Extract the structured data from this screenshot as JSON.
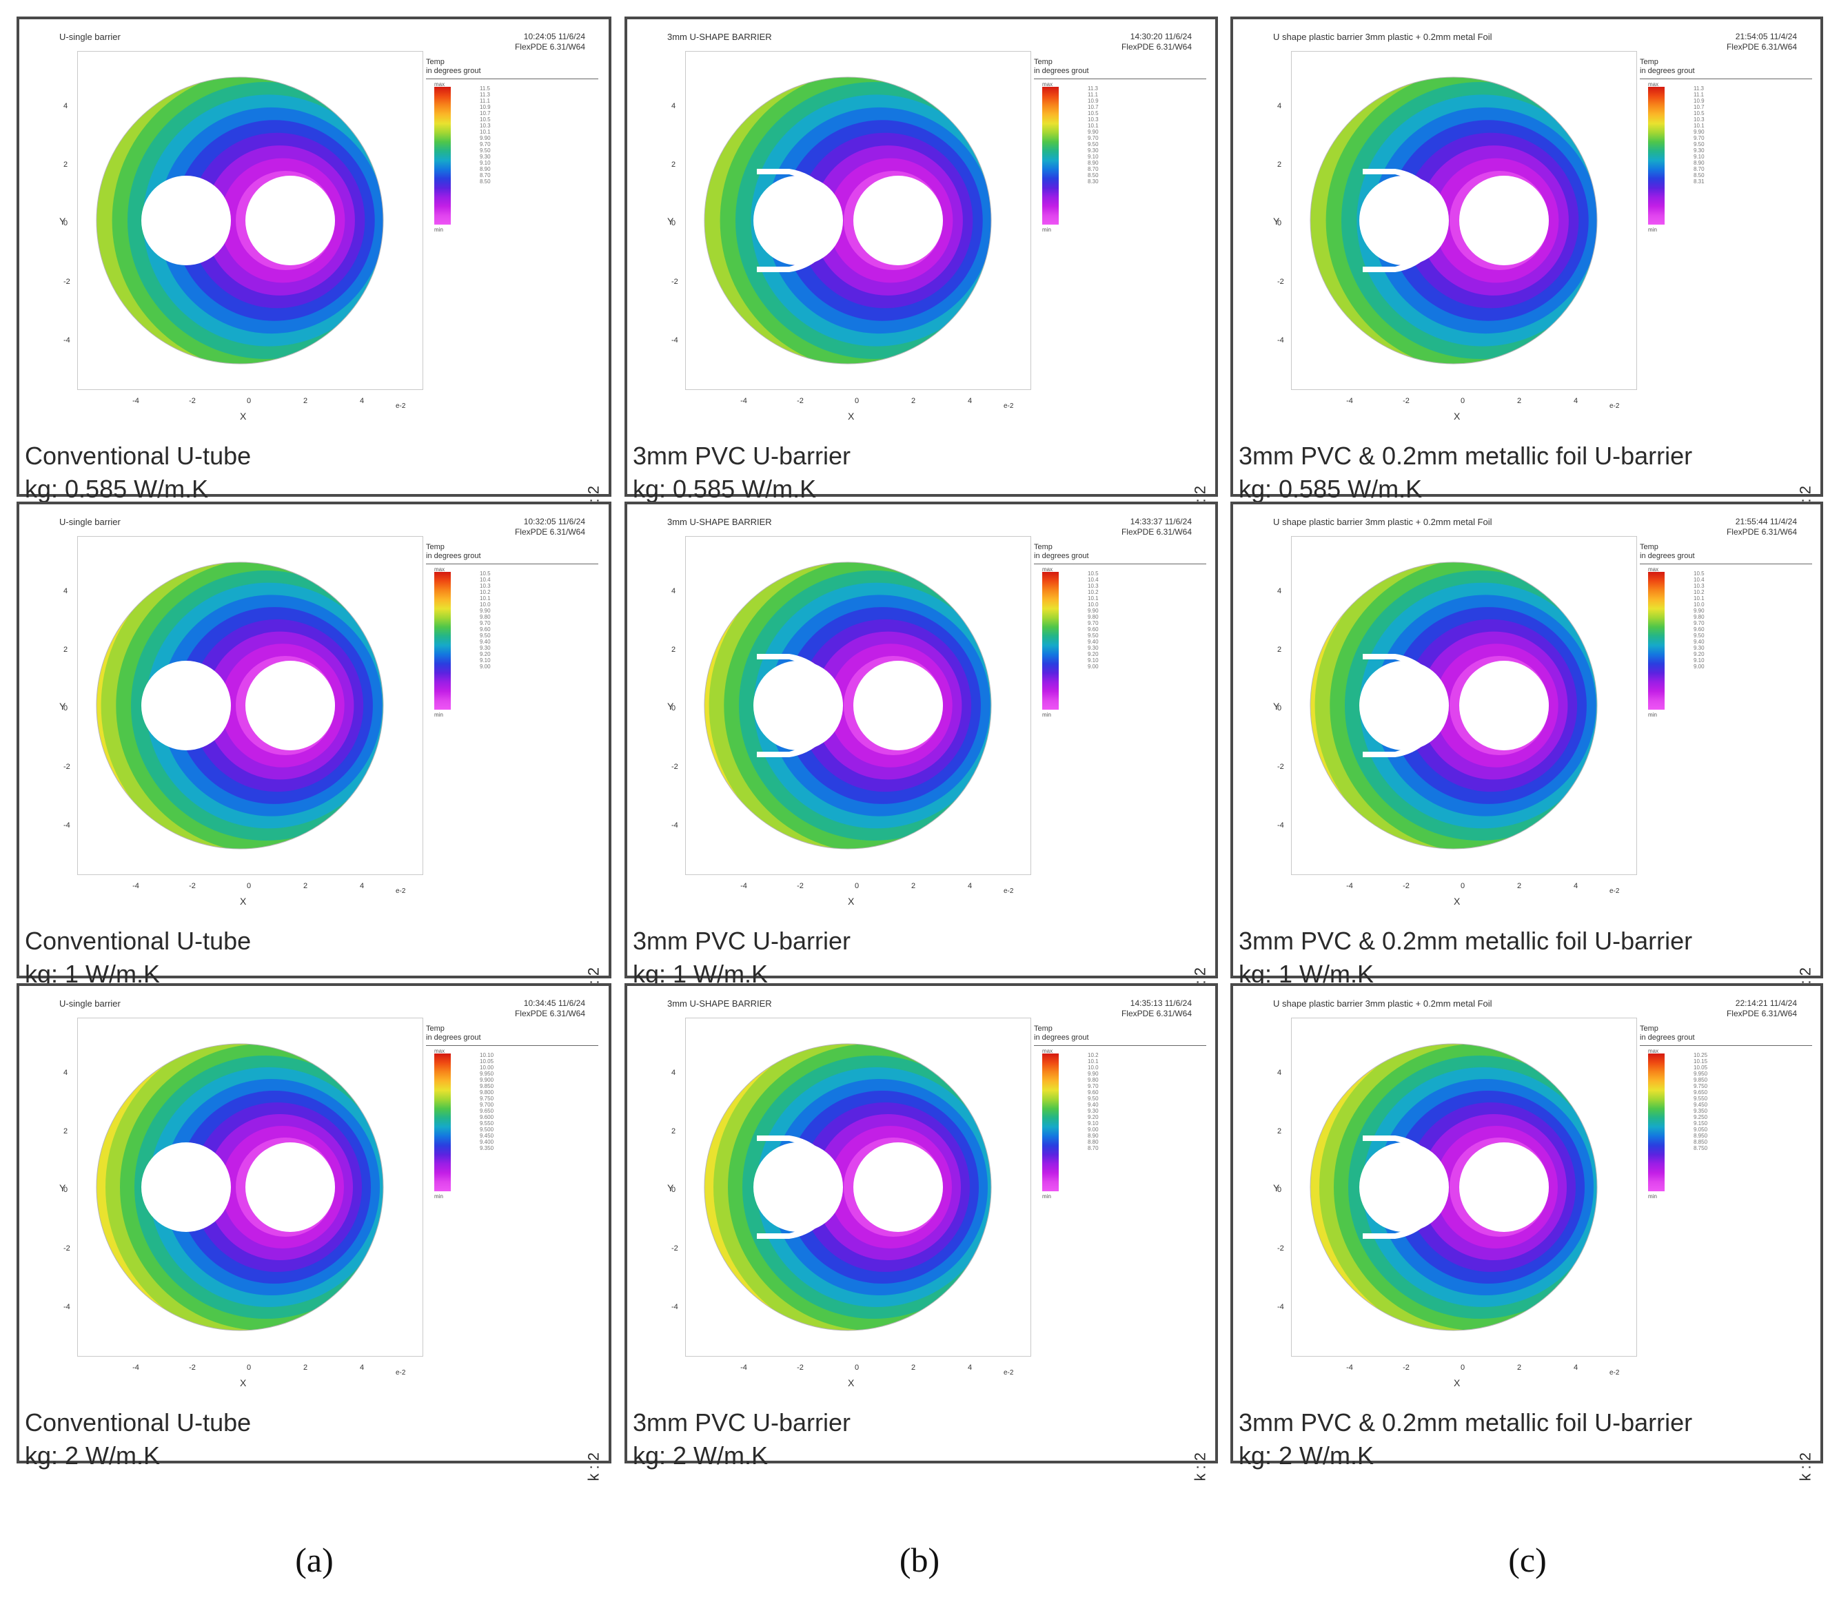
{
  "legend_header": [
    "Temp",
    "in degrees grout"
  ],
  "legend_max": "max",
  "legend_min": "min",
  "axis_x": "X",
  "axis_y": "Y",
  "x_unit": "e-2",
  "x_ticks": [
    "-4",
    "-2",
    "0",
    "2",
    "4"
  ],
  "y_ticks": [
    "4",
    "2",
    "0",
    "-2",
    "-4"
  ],
  "kgrid_label": "k : 2",
  "columns": [
    {
      "label": "(a)",
      "title": "U-single barrier",
      "case": "Conventional U-tube",
      "barrier": false
    },
    {
      "label": "(b)",
      "title": "3mm U-SHAPE BARRIER",
      "case": "3mm PVC U-barrier",
      "barrier": true
    },
    {
      "label": "(c)",
      "title": "U shape plastic barrier 3mm plastic + 0.2mm metal Foil",
      "case": "3mm PVC & 0.2mm metallic foil U-barrier",
      "barrier": true
    }
  ],
  "rows": [
    {
      "kg": "kg: 0.585 W/m.K"
    },
    {
      "kg": "kg: 1 W/m.K"
    },
    {
      "kg": "kg: 2 W/m.K"
    }
  ],
  "stamps": [
    [
      "10:24:05 11/6/24",
      "FlexPDE 6.31/W64"
    ],
    [
      "14:30:20 11/6/24",
      "FlexPDE 6.31/W64"
    ],
    [
      "21:54:05 11/4/24",
      "FlexPDE 6.31/W64"
    ],
    [
      "10:32:05 11/6/24",
      "FlexPDE 6.31/W64"
    ],
    [
      "14:33:37 11/6/24",
      "FlexPDE 6.31/W64"
    ],
    [
      "21:55:44 11/4/24",
      "FlexPDE 6.31/W64"
    ],
    [
      "10:34:45 11/6/24",
      "FlexPDE 6.31/W64"
    ],
    [
      "14:35:13 11/6/24",
      "FlexPDE 6.31/W64"
    ],
    [
      "22:14:21 11/4/24",
      "FlexPDE 6.31/W64"
    ]
  ],
  "legend_values": [
    [
      "11.5",
      "11.3",
      "11.1",
      "10.9",
      "10.7",
      "10.5",
      "10.3",
      "10.1",
      "9.90",
      "9.70",
      "9.50",
      "9.30",
      "9.10",
      "8.90",
      "8.70",
      "8.50"
    ],
    [
      "11.3",
      "11.1",
      "10.9",
      "10.7",
      "10.5",
      "10.3",
      "10.1",
      "9.90",
      "9.70",
      "9.50",
      "9.30",
      "9.10",
      "8.90",
      "8.70",
      "8.50",
      "8.30"
    ],
    [
      "11.3",
      "11.1",
      "10.9",
      "10.7",
      "10.5",
      "10.3",
      "10.1",
      "9.90",
      "9.70",
      "9.50",
      "9.30",
      "9.10",
      "8.90",
      "8.70",
      "8.50",
      "8.31"
    ],
    [
      "10.5",
      "10.4",
      "10.3",
      "10.2",
      "10.1",
      "10.0",
      "9.90",
      "9.80",
      "9.70",
      "9.60",
      "9.50",
      "9.40",
      "9.30",
      "9.20",
      "9.10",
      "9.00"
    ],
    [
      "10.5",
      "10.4",
      "10.3",
      "10.2",
      "10.1",
      "10.0",
      "9.90",
      "9.80",
      "9.70",
      "9.60",
      "9.50",
      "9.40",
      "9.30",
      "9.20",
      "9.10",
      "9.00"
    ],
    [
      "10.5",
      "10.4",
      "10.3",
      "10.2",
      "10.1",
      "10.0",
      "9.90",
      "9.80",
      "9.70",
      "9.60",
      "9.50",
      "9.40",
      "9.30",
      "9.20",
      "9.10",
      "9.00"
    ],
    [
      "10.10",
      "10.05",
      "10.00",
      "9.950",
      "9.900",
      "9.850",
      "9.800",
      "9.750",
      "9.700",
      "9.650",
      "9.600",
      "9.550",
      "9.500",
      "9.450",
      "9.400",
      "9.350"
    ],
    [
      "10.2",
      "10.1",
      "10.0",
      "9.90",
      "9.80",
      "9.70",
      "9.60",
      "9.50",
      "9.40",
      "9.30",
      "9.20",
      "9.10",
      "9.00",
      "8.90",
      "8.80",
      "8.70"
    ],
    [
      "10.25",
      "10.15",
      "10.05",
      "9.950",
      "9.850",
      "9.750",
      "9.650",
      "9.550",
      "9.450",
      "9.350",
      "9.250",
      "9.150",
      "9.050",
      "8.950",
      "8.850",
      "8.750"
    ]
  ],
  "colors": {
    "frame": "#4a4a4a",
    "hot": "#e8281a",
    "cold": "#9b1ee6"
  }
}
